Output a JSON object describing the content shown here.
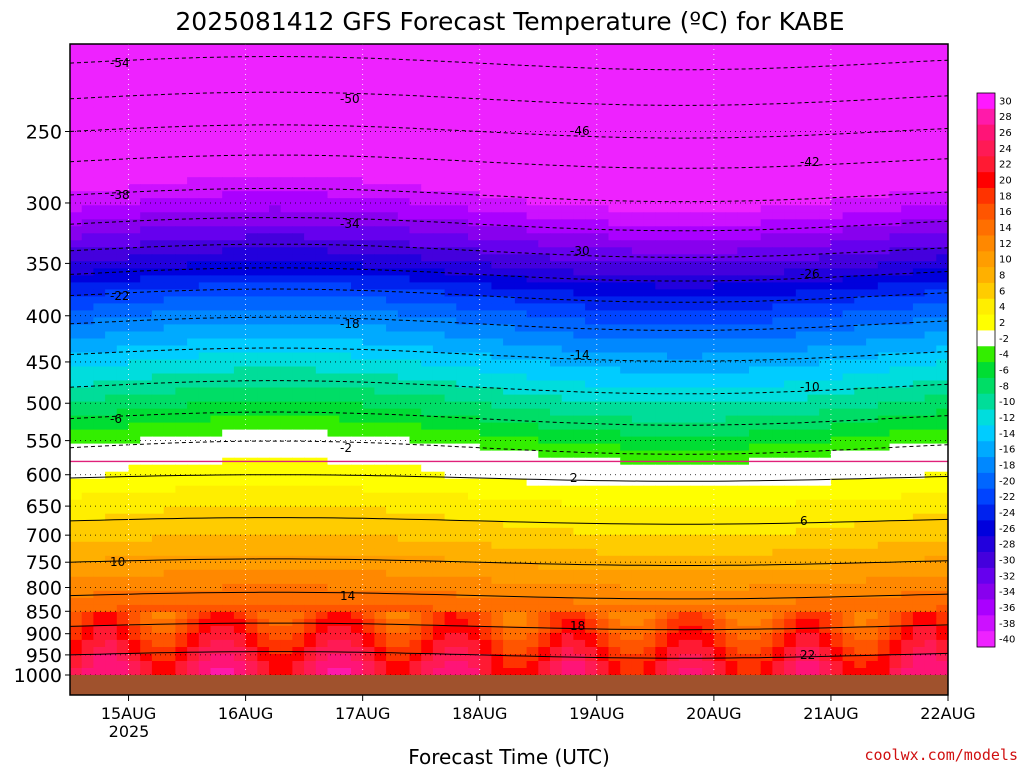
{
  "chart_data": {
    "type": "heatmap",
    "title": "2025081412 GFS Forecast Temperature (ºC) for KABE",
    "xlabel": "Forecast Time (UTC)",
    "credit": "coolwx.com/models",
    "x_ticks": [
      "15AUG",
      "16AUG",
      "17AUG",
      "18AUG",
      "19AUG",
      "20AUG",
      "21AUG",
      "22AUG"
    ],
    "x_sub": "2025",
    "y_ticks": [
      250,
      300,
      350,
      400,
      450,
      500,
      550,
      600,
      650,
      700,
      750,
      800,
      850,
      900,
      950,
      1000
    ],
    "y_range": [
      200,
      1000
    ],
    "x_range_days": [
      14.5,
      22
    ],
    "log_pressure_axis": true,
    "grid": true,
    "colorbar": {
      "labels": [
        "30",
        "28",
        "26",
        "24",
        "22",
        "20",
        "18",
        "16",
        "14",
        "12",
        "10",
        "8",
        "6",
        "4",
        "2",
        "-2",
        "-4",
        "-6",
        "-8",
        "-10",
        "-12",
        "-14",
        "-16",
        "-18",
        "-20",
        "-22",
        "-24",
        "-26",
        "-28",
        "-30",
        "-32",
        "-34",
        "-36",
        "-38",
        "-40"
      ],
      "colors": [
        "#ff19ff",
        "#ff1aaa",
        "#ff1477",
        "#ff1a55",
        "#ff1a33",
        "#ff0000",
        "#ff3300",
        "#ff5500",
        "#ff6f00",
        "#ff8800",
        "#ff9d00",
        "#ffb000",
        "#ffcc00",
        "#ffee00",
        "#ffff00",
        "#ffffff",
        "#33ee00",
        "#00dd33",
        "#00dd66",
        "#00dd99",
        "#00dddd",
        "#00ccff",
        "#00aaff",
        "#0088ff",
        "#0066ff",
        "#0044ff",
        "#0022ee",
        "#0000dd",
        "#2200dd",
        "#4400dd",
        "#6600ee",
        "#8800ee",
        "#aa00ff",
        "#cc11ff",
        "#ee22ff"
      ]
    },
    "temperature_profile_by_pressure": {
      "pressure_hPa": [
        200,
        230,
        250,
        270,
        300,
        350,
        380,
        400,
        450,
        500,
        550,
        590,
        620,
        650,
        700,
        750,
        800,
        850,
        900,
        950,
        980
      ],
      "temp_C": [
        -56,
        -50,
        -46,
        -42,
        -37,
        -28,
        -22,
        -19,
        -13,
        -8,
        -3,
        1,
        3,
        5,
        7,
        10,
        13,
        16,
        19,
        22,
        24
      ]
    },
    "contour_labels": [
      "-54",
      "-50",
      "-46",
      "-42",
      "-38",
      "-34",
      "-30",
      "-26",
      "-22",
      "-18",
      "-14",
      "-10",
      "-6",
      "-2",
      "2",
      "6",
      "10",
      "14",
      "18",
      "22"
    ]
  }
}
